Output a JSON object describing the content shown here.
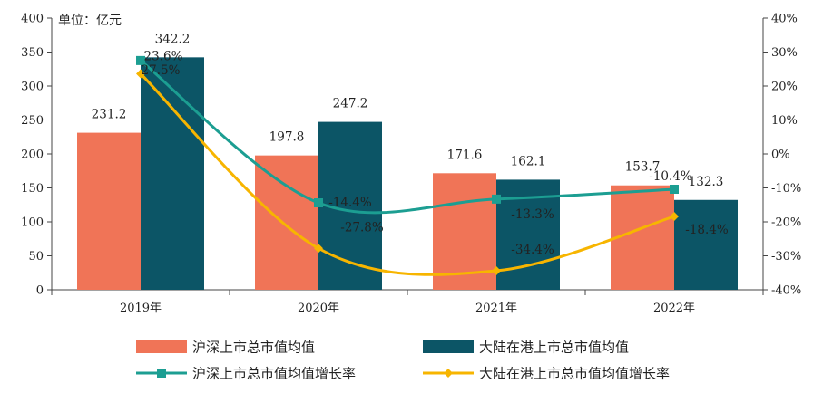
{
  "chart_data": {
    "type": "bar",
    "unit_label": "单位：亿元",
    "categories": [
      "2019年",
      "2020年",
      "2021年",
      "2022年"
    ],
    "ylim": [
      0,
      400
    ],
    "yticks": [
      "0",
      "50",
      "100",
      "150",
      "200",
      "250",
      "300",
      "350",
      "400"
    ],
    "ylim_right": [
      -40,
      40
    ],
    "yticks_right": [
      "-40%",
      "-30%",
      "-20%",
      "-10%",
      "0%",
      "10%",
      "20%",
      "30%",
      "40%"
    ],
    "grid": false,
    "legend_position": "bottom",
    "series": [
      {
        "name": "沪深上市总市值均值",
        "kind": "bar",
        "axis": "left",
        "color": "#F07457",
        "values": [
          231.2,
          197.8,
          171.6,
          153.7
        ],
        "labels": [
          "231.2",
          "197.8",
          "171.6",
          "153.7"
        ]
      },
      {
        "name": "大陆在港上市总市值均值",
        "kind": "bar",
        "axis": "left",
        "color": "#0C5566",
        "values": [
          342.2,
          247.2,
          162.1,
          132.3
        ],
        "labels": [
          "342.2",
          "247.2",
          "162.1",
          "132.3"
        ]
      },
      {
        "name": "沪深上市总市值均值增长率",
        "kind": "line",
        "axis": "right",
        "color": "#1C9E92",
        "marker": "square",
        "values": [
          27.5,
          -14.4,
          -13.3,
          -10.4
        ],
        "labels": [
          "27.5%",
          "-14.4%",
          "-13.3%",
          "-10.4%"
        ]
      },
      {
        "name": "大陆在港上市总市值均值增长率",
        "kind": "line",
        "axis": "right",
        "color": "#F7B500",
        "marker": "diamond",
        "values": [
          23.6,
          -27.8,
          -34.4,
          -18.4
        ],
        "labels": [
          "23.6%",
          "-27.8%",
          "-34.4%",
          "-18.4%"
        ]
      }
    ]
  }
}
